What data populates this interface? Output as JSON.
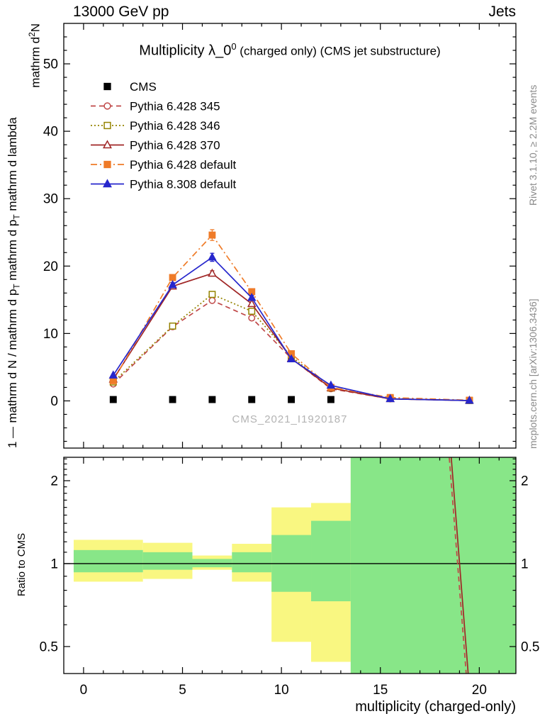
{
  "header": {
    "left": "13000 GeV pp",
    "right": "Jets"
  },
  "title": {
    "pre": "Multiplicity λ_0",
    "sup": "0",
    "post": " (charged only) (CMS jet substructure)"
  },
  "watermark": "CMS_2021_I1920187",
  "side_labels": {
    "top_right": "Rivet 3.1.10, ≥ 2.2M events",
    "bottom_right": "mcplots.cern.ch [arXiv:1306.3436]"
  },
  "ylabel_main": {
    "one": "1",
    "d1": "mathrm d N / mathrm d p",
    "d1sub": "T",
    "d2": " mathrm d p",
    "d2sub": "T",
    "d3": " mathrm d lambda",
    "n1": "mathrm d",
    "n1sup": "2",
    "n2": "N"
  },
  "ratio_ylabel": "Ratio to CMS",
  "xlabel": "multiplicity (charged-only)",
  "chart_data": [
    {
      "type": "line",
      "panel": "main",
      "title": "Multiplicity λ_0^0 (charged only) (CMS jet substructure)",
      "xlim": [
        -1.0,
        21.85
      ],
      "ylim": [
        -7,
        56
      ],
      "xticks": [
        0,
        5,
        10,
        15,
        20
      ],
      "yticks": [
        0,
        10,
        20,
        30,
        40,
        50
      ],
      "x_bin_centers": [
        1.5,
        4.5,
        6.5,
        8.5,
        10.5,
        12.5,
        15.5,
        19.5
      ],
      "series": [
        {
          "name": "CMS",
          "color": "#000000",
          "marker": "square",
          "fill": true,
          "line": "none",
          "x": [
            1.5,
            4.5,
            6.5,
            8.5,
            10.5,
            12.5
          ],
          "y": [
            0.2,
            0.2,
            0.2,
            0.2,
            0.2,
            0.2
          ],
          "yerr": [
            0,
            0,
            0,
            0,
            0,
            0
          ]
        },
        {
          "name": "Pythia 6.428 345",
          "color": "#c04848",
          "marker": "circle",
          "fill": false,
          "line": "dashed",
          "x": [
            1.5,
            4.5,
            6.5,
            8.5,
            10.5,
            12.5,
            15.5,
            19.5
          ],
          "y": [
            2.5,
            11.0,
            14.9,
            12.3,
            6.3,
            1.8,
            0.3,
            0.05
          ],
          "yerr": [
            0.1,
            0.2,
            0.3,
            0.3,
            0.2,
            0.1,
            0.05,
            0.02
          ]
        },
        {
          "name": "Pythia 6.428 346",
          "color": "#948300",
          "marker": "square",
          "fill": false,
          "line": "dotted",
          "x": [
            1.5,
            4.5,
            6.5,
            8.5,
            10.5,
            12.5,
            15.5,
            19.5
          ],
          "y": [
            2.8,
            11.1,
            15.8,
            13.3,
            6.6,
            1.9,
            0.35,
            0.05
          ],
          "yerr": [
            0.1,
            0.2,
            0.3,
            0.3,
            0.2,
            0.1,
            0.05,
            0.02
          ]
        },
        {
          "name": "Pythia 6.428 370",
          "color": "#a02626",
          "marker": "triangle",
          "fill": false,
          "line": "solid",
          "x": [
            1.5,
            4.5,
            6.5,
            8.5,
            10.5,
            12.5,
            15.5,
            19.5
          ],
          "y": [
            3.2,
            17.0,
            18.9,
            14.4,
            6.3,
            1.9,
            0.3,
            0.05
          ],
          "yerr": [
            0.1,
            0.3,
            0.4,
            0.3,
            0.2,
            0.1,
            0.05,
            0.02
          ]
        },
        {
          "name": "Pythia 6.428 default",
          "color": "#ef7b28",
          "marker": "square",
          "fill": true,
          "line": "dashdot",
          "x": [
            1.5,
            4.5,
            6.5,
            8.5,
            10.5,
            12.5,
            15.5,
            19.5
          ],
          "y": [
            3.0,
            18.3,
            24.6,
            16.2,
            7.0,
            2.0,
            0.5,
            0.1
          ],
          "yerr": [
            0.15,
            0.4,
            0.8,
            0.45,
            0.25,
            0.12,
            0.06,
            0.03
          ]
        },
        {
          "name": "Pythia 8.308 default",
          "color": "#2626cc",
          "marker": "triangle",
          "fill": true,
          "line": "solid",
          "x": [
            1.5,
            4.5,
            6.5,
            8.5,
            10.5,
            12.5,
            15.5,
            19.5
          ],
          "y": [
            3.8,
            17.2,
            21.3,
            15.3,
            6.2,
            2.3,
            0.3,
            0.05
          ],
          "yerr": [
            0.15,
            0.35,
            0.6,
            0.35,
            0.2,
            0.12,
            0.05,
            0.02
          ]
        }
      ]
    },
    {
      "type": "ratio",
      "panel": "ratio",
      "ylabel": "Ratio to CMS",
      "yscale": "log",
      "ylim": [
        0.399,
        2.432
      ],
      "yticks": [
        0.5,
        1,
        2
      ],
      "ytick_labels": [
        "0.5",
        "1",
        "2"
      ],
      "yminor": [
        0.6,
        0.7,
        0.8,
        0.9,
        1.1,
        1.2,
        1.3,
        1.4,
        1.5,
        1.6,
        1.7,
        1.8,
        1.9,
        2.1,
        2.2,
        2.3,
        2.4
      ],
      "ref_y": 1,
      "bands": [
        {
          "name": "yellow-band",
          "color": "#f9f781",
          "segments": [
            [
              -0.5,
              3,
              0.86,
              1.22
            ],
            [
              3,
              5.5,
              0.88,
              1.19
            ],
            [
              5.5,
              7.5,
              0.95,
              1.07
            ],
            [
              7.5,
              9.5,
              0.86,
              1.18
            ],
            [
              9.5,
              11.5,
              0.52,
              1.6
            ],
            [
              11.5,
              13.5,
              0.44,
              1.66
            ],
            [
              13.5,
              21.85,
              0.399,
              2.432
            ]
          ]
        },
        {
          "name": "green-band",
          "color": "#88e688",
          "segments": [
            [
              -0.5,
              3,
              0.93,
              1.12
            ],
            [
              3,
              5.5,
              0.95,
              1.1
            ],
            [
              5.5,
              7.5,
              0.97,
              1.04
            ],
            [
              7.5,
              9.5,
              0.93,
              1.1
            ],
            [
              9.5,
              11.5,
              0.79,
              1.27
            ],
            [
              11.5,
              13.5,
              0.73,
              1.43
            ],
            [
              13.5,
              21.85,
              0.399,
              2.432
            ]
          ]
        }
      ],
      "lines": [
        {
          "color": "#c04848",
          "style": "dashed",
          "points": [
            [
              18.45,
              2.6
            ],
            [
              19.4,
              0.35
            ]
          ]
        },
        {
          "color": "#a02626",
          "style": "solid",
          "points": [
            [
              18.55,
              2.6
            ],
            [
              19.5,
              0.35
            ]
          ]
        }
      ]
    }
  ]
}
